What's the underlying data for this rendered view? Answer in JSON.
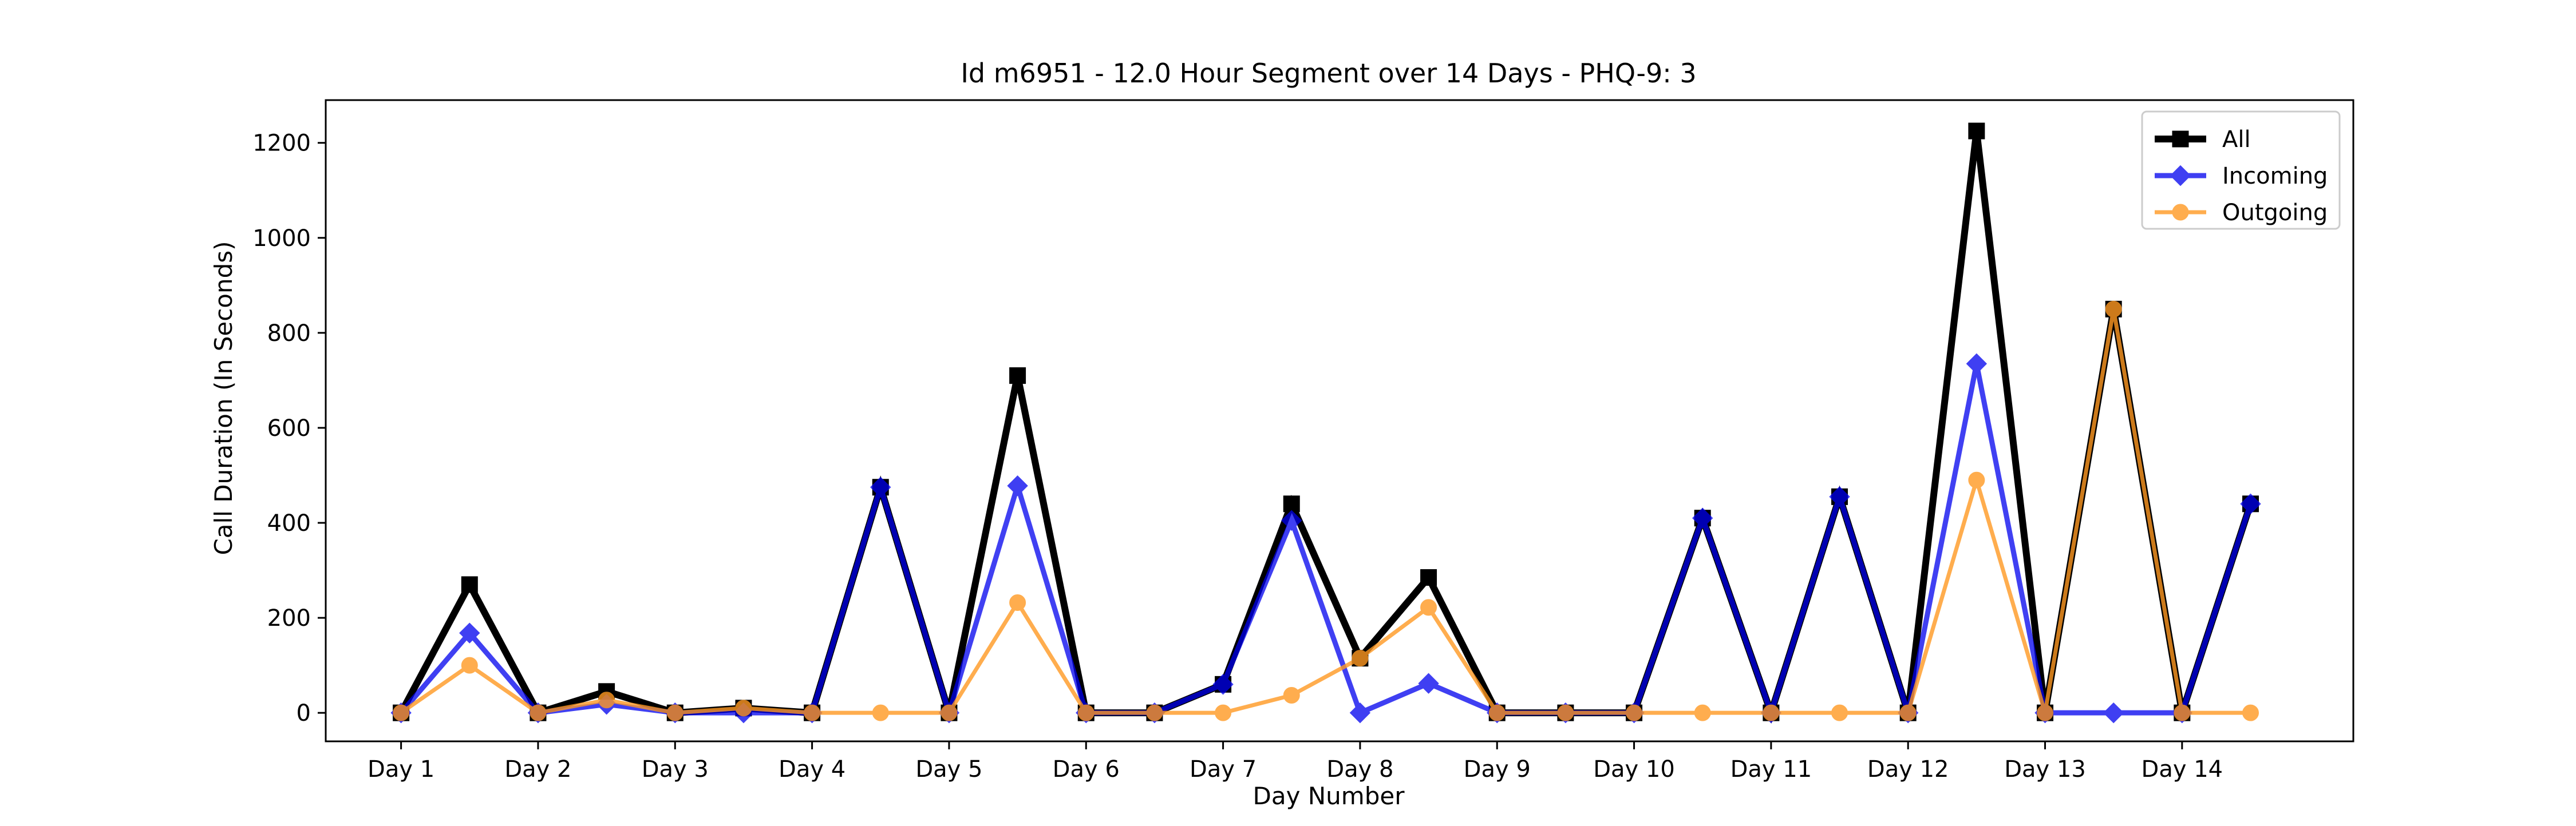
{
  "chart_data": {
    "type": "line",
    "title": "Id m6951 - 12.0 Hour Segment over 14 Days - PHQ-9: 3",
    "xlabel": "Day Number",
    "ylabel": "Call Duration (In Seconds)",
    "x_ticks": [
      "Day 1",
      "Day 2",
      "Day 3",
      "Day 4",
      "Day 5",
      "Day 6",
      "Day 7",
      "Day 8",
      "Day 9",
      "Day 10",
      "Day 11",
      "Day 12",
      "Day 13",
      "Day 14"
    ],
    "x": [
      1,
      1.5,
      2,
      2.5,
      3,
      3.5,
      4,
      4.5,
      5,
      5.5,
      6,
      6.5,
      7,
      7.5,
      8,
      8.5,
      9,
      9.5,
      10,
      10.5,
      11,
      11.5,
      12,
      12.5,
      13,
      13.5,
      14,
      14.5
    ],
    "xlim": [
      0.45,
      15.25
    ],
    "ylim": [
      -60,
      1290
    ],
    "y_ticks": [
      0,
      200,
      400,
      600,
      800,
      1000,
      1200
    ],
    "grid": false,
    "legend_position": "top-right",
    "series": [
      {
        "name": "All",
        "color": "#000000",
        "marker": "square",
        "values": [
          0,
          270,
          0,
          45,
          0,
          10,
          0,
          475,
          0,
          710,
          0,
          0,
          60,
          440,
          115,
          285,
          0,
          0,
          0,
          410,
          0,
          455,
          0,
          1225,
          0,
          850,
          0,
          440
        ]
      },
      {
        "name": "Incoming",
        "color": "#0000ee",
        "marker": "diamond",
        "values": [
          0,
          168,
          0,
          18,
          0,
          0,
          0,
          475,
          0,
          478,
          0,
          0,
          60,
          405,
          0,
          62,
          0,
          0,
          0,
          410,
          0,
          455,
          0,
          735,
          0,
          0,
          0,
          440
        ]
      },
      {
        "name": "Outgoing",
        "color": "#ff9922",
        "marker": "circle",
        "values": [
          0,
          100,
          0,
          27,
          0,
          10,
          0,
          0,
          0,
          232,
          0,
          0,
          0,
          37,
          115,
          222,
          0,
          0,
          0,
          0,
          0,
          0,
          0,
          490,
          0,
          850,
          0,
          0
        ]
      }
    ]
  }
}
